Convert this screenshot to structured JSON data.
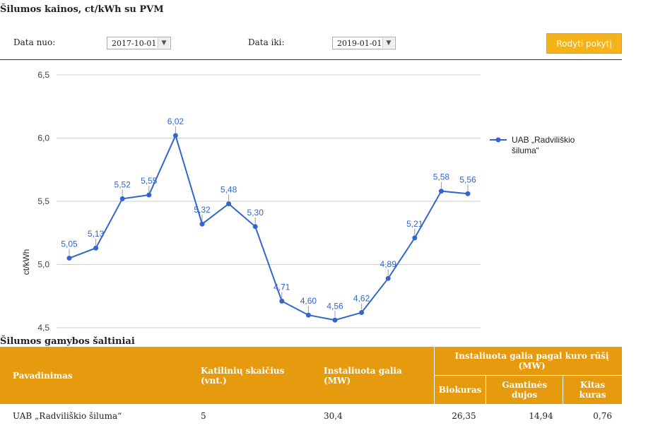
{
  "page": {
    "title": "Šilumos kainos, ct/kWh su PVM"
  },
  "filters": {
    "from_label": "Data nuo:",
    "from_value": "2017-10-01",
    "to_label": "Data iki:",
    "to_value": "2019-01-01",
    "button_label": "Rodyti pokytį"
  },
  "colors": {
    "line": "#3366cc",
    "accent": "#e69a0e",
    "button": "#f5b21b",
    "label": "#3366cc"
  },
  "chart_data": {
    "type": "line",
    "title": "",
    "xlabel": "",
    "ylabel": "ct/kWh",
    "ylim": [
      4.5,
      6.5
    ],
    "yticks": [
      4.5,
      5.0,
      5.5,
      6.0,
      6.5
    ],
    "ytick_labels": [
      "4,5",
      "5,0",
      "5,5",
      "6,0",
      "6,5"
    ],
    "grid": true,
    "legend": "right",
    "series": [
      {
        "name": "UAB „Radviliškio šiluma“",
        "values": [
          5.05,
          5.13,
          5.52,
          5.55,
          6.02,
          5.32,
          5.48,
          5.3,
          4.71,
          4.6,
          4.56,
          4.62,
          4.89,
          5.21,
          5.58,
          5.56
        ],
        "labels": [
          "5,05",
          "5,13",
          "5,52",
          "5,55",
          "6,02",
          "5,32",
          "5,48",
          "5,30",
          "4,71",
          "4,60",
          "4,56",
          "4,62",
          "4,89",
          "5,21",
          "5,58",
          "5,56"
        ]
      }
    ]
  },
  "legend": {
    "line1": "UAB „Radviliškio",
    "line2": "šiluma“"
  },
  "table": {
    "title": "Šilumos gamybos šaltiniai",
    "headers": {
      "name": "Pavadinimas",
      "boilers_1": "Katilinių skaičius",
      "boilers_2": "(vnt.)",
      "installed": "Instaliuota galia (MW)",
      "by_fuel": "Instaliuota galia pagal kuro rūšį (MW)",
      "biofuel": "Biokuras",
      "gas": "Gamtinės dujos",
      "other": "Kitas kuras"
    },
    "rows": [
      {
        "name": "UAB „Radviliškio šiluma“",
        "boilers": "5",
        "installed": "30,4",
        "biofuel": "26,35",
        "gas": "14,94",
        "other": "0,76"
      }
    ]
  }
}
